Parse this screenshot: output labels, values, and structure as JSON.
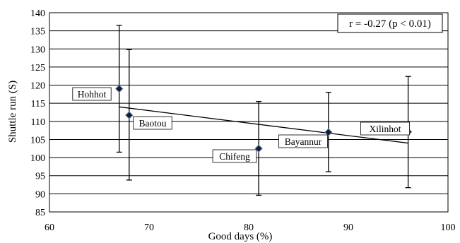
{
  "chart_data": {
    "type": "scatter",
    "title": "",
    "xlabel": "Good days (%)",
    "ylabel": "Shuttle run  (S)",
    "xlim": [
      60,
      100
    ],
    "ylim": [
      85,
      140
    ],
    "xticks": [
      60,
      70,
      80,
      90,
      100
    ],
    "yticks": [
      85,
      90,
      95,
      100,
      105,
      110,
      115,
      120,
      125,
      130,
      135,
      140
    ],
    "grid": "horizontal",
    "annotation": "r = -0.27 (p < 0.01)",
    "points": [
      {
        "label": "Hohhot",
        "x": 67,
        "y": 119,
        "err_low": 101.5,
        "err_high": 136.5
      },
      {
        "label": "Baotou",
        "x": 68,
        "y": 111.7,
        "err_low": 93.8,
        "err_high": 129.8
      },
      {
        "label": "Chifeng",
        "x": 81,
        "y": 102.5,
        "err_low": 89.6,
        "err_high": 115.5
      },
      {
        "label": "Bayannur",
        "x": 88,
        "y": 107,
        "err_low": 96.1,
        "err_high": 118
      },
      {
        "label": "Xilinhot",
        "x": 96,
        "y": 107.1,
        "err_low": 91.7,
        "err_high": 122.4
      }
    ],
    "trendline": {
      "x": [
        67,
        96
      ],
      "y": [
        114,
        104
      ]
    },
    "colors": {
      "marker": "#0d1f3c",
      "line": "#000000",
      "grid": "#000000"
    }
  }
}
